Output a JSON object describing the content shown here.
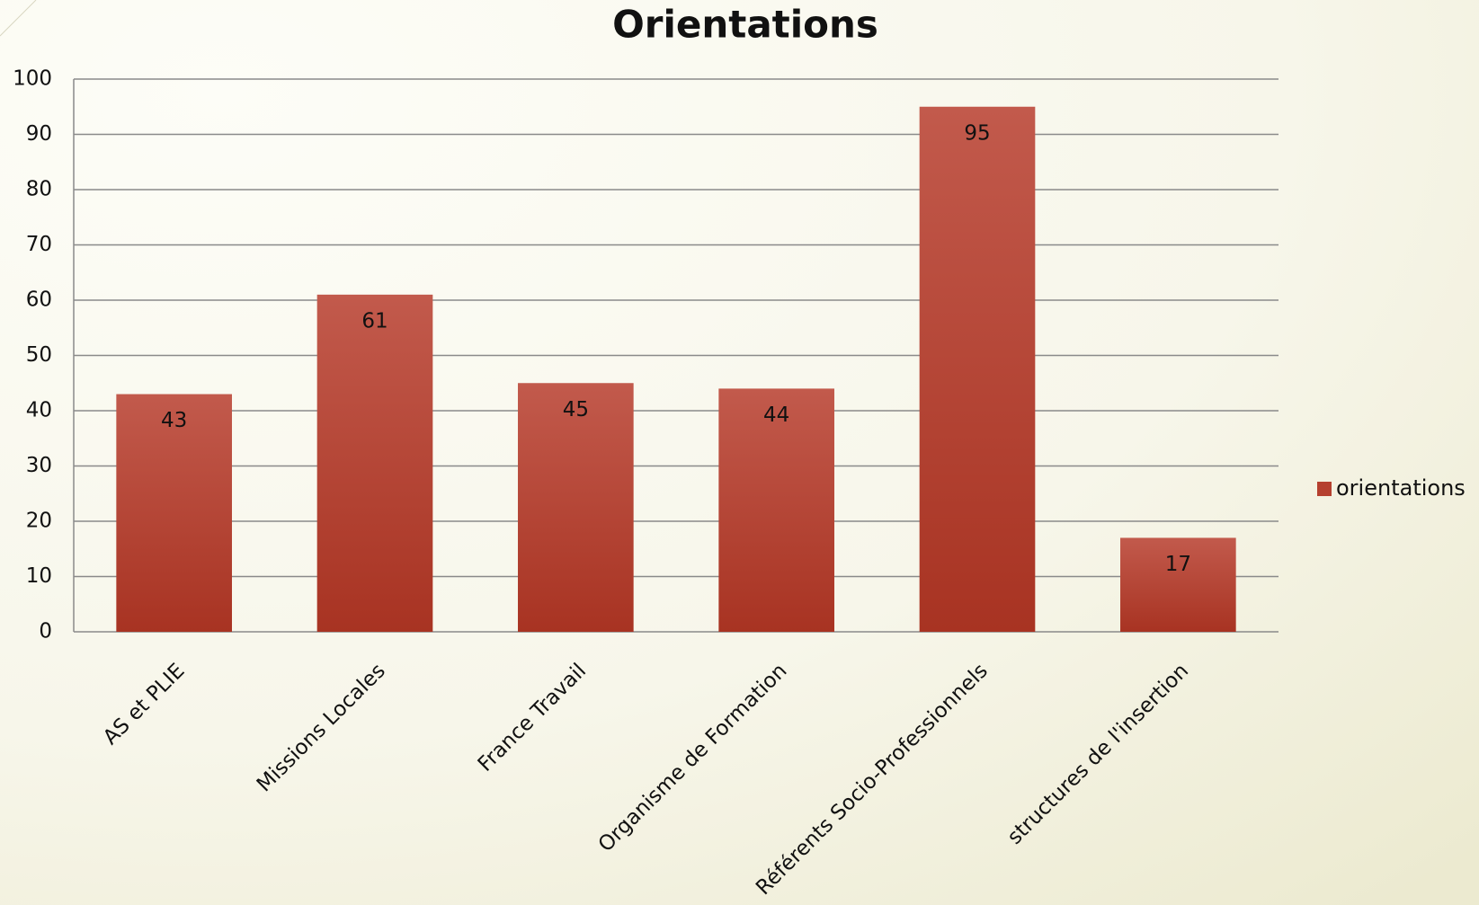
{
  "chart_data": {
    "type": "bar",
    "title": "Orientations",
    "categories": [
      "AS et PLIE",
      "Missions Locales",
      "France Travail",
      "Organisme de Formation",
      "Référents Socio-Professionnels",
      "structures de l'insertion"
    ],
    "series": [
      {
        "name": "orientations",
        "color": "#b5402f",
        "values": [
          43,
          61,
          45,
          44,
          95,
          17
        ]
      }
    ],
    "ylim": [
      0,
      100
    ],
    "yticks": [
      0,
      10,
      20,
      30,
      40,
      50,
      60,
      70,
      80,
      90,
      100
    ],
    "grid": true,
    "legend": "right"
  }
}
